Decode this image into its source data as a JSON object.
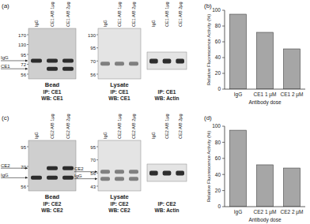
{
  "panel_labels": [
    "(a)",
    "(b)",
    "(c)",
    "(d)"
  ],
  "blots": [
    {
      "title": "Bead",
      "lanes": [
        "IgG",
        "CE1 A/B 1µg",
        "CE1 A/B 2µg"
      ],
      "markers": [
        170,
        130,
        95,
        72,
        56
      ],
      "arrows": [
        "IgG",
        "CE1"
      ],
      "caption": [
        "IP: CE1",
        "WB: CE1"
      ]
    },
    {
      "title": "Lysate",
      "lanes": [
        "IgG",
        "CE1 A/B 1µg",
        "CE1 A/B 2µg"
      ],
      "markers": [
        130,
        95,
        70,
        56
      ],
      "caption": [
        "IP: CE1",
        "WB: CE1"
      ]
    },
    {
      "lanes": [
        "IgG",
        "CE1 A/B 1µg",
        "CE1 A/B 2µg"
      ],
      "caption": [
        "IP: CE1",
        "WB: Actin"
      ]
    },
    {
      "title": "Bead",
      "lanes": [
        "IgG",
        "CE2 A/B 1µg",
        "CE2 A/B 2µg"
      ],
      "markers": [
        95,
        70,
        56
      ],
      "arrows": [
        "CE2",
        "IgG"
      ],
      "caption": [
        "IP: CE2",
        "WB: CE2"
      ]
    },
    {
      "title": "Lysate",
      "lanes": [
        "IgG",
        "CE2 A/B 1µg",
        "CE2 A/B 2µg"
      ],
      "markers": [
        95,
        70,
        56,
        43
      ],
      "arrows": [
        "CE2",
        "IgG"
      ],
      "caption": [
        "IP: CE2",
        "WB: CE2"
      ]
    },
    {
      "lanes": [
        "IgG",
        "CE2 A/B 1µg",
        "CE2 A/B 2µg"
      ],
      "caption": [
        "IP: CE2",
        "WB: Actin"
      ]
    }
  ],
  "chart_data": [
    {
      "type": "bar",
      "categories": [
        "IgG",
        "CE1 1 µM",
        "CE1 2 µM"
      ],
      "values": [
        95,
        72,
        51
      ],
      "color": "#a6a6a6",
      "x_label": "Antibody dose",
      "y_label": "Relative Fluorescence Activity (%)",
      "ylim": [
        0,
        100
      ],
      "yticks": [
        0,
        20,
        40,
        60,
        80,
        100
      ]
    },
    {
      "type": "bar",
      "categories": [
        "IgG",
        "CE2 1 µM",
        "CE2 2 µM"
      ],
      "values": [
        95,
        52,
        48
      ],
      "color": "#a6a6a6",
      "x_label": "Antibody dose",
      "y_label": "Relative Fluorescence Activity (%)",
      "ylim": [
        0,
        100
      ],
      "yticks": [
        0,
        20,
        40,
        60,
        80,
        100
      ]
    }
  ]
}
